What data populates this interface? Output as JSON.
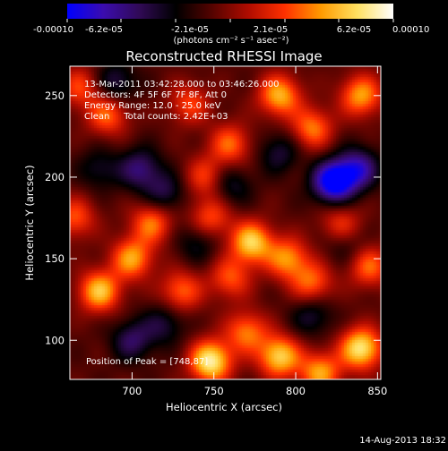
{
  "colorbar": {
    "tick_labels": [
      "-0.00010",
      "-6.2e-05",
      "-2.1e-05",
      "2.1e-05",
      "6.2e-05",
      "0.00010"
    ],
    "unit_label": "(photons cm⁻² s⁻¹ asec⁻²)",
    "min": -0.0001,
    "max": 0.0001,
    "palette": [
      "#0000ff",
      "#3b0cae",
      "#300a55",
      "#000000",
      "#550300",
      "#b00c00",
      "#ff3000",
      "#ff9a00",
      "#ffe060",
      "#ffffff"
    ]
  },
  "chart_data": {
    "type": "heatmap",
    "title": "Reconstructed RHESSI Image",
    "xlabel": "Heliocentric X (arcsec)",
    "ylabel": "Heliocentric Y (arcsec)",
    "xlim": [
      662,
      852
    ],
    "ylim": [
      76,
      268
    ],
    "x_ticks": [
      700,
      750,
      800,
      850
    ],
    "y_ticks": [
      100,
      150,
      200,
      250
    ],
    "info_lines": [
      "13-Mar-2011 03:42:28.000 to 03:46:26.000",
      "Detectors: 4F 5F 6F 7F 8F, Att 0",
      "Energy Range: 12.0 - 25.0 keV",
      "Clean     Total counts: 2.42E+03"
    ],
    "peak_label": "Position of Peak = [748,87]",
    "peak_position": [
      748,
      87
    ],
    "grid": false,
    "blobs": [
      {
        "x": 748,
        "y": 87,
        "v": 1.0
      },
      {
        "x": 790,
        "y": 90,
        "v": 0.85
      },
      {
        "x": 840,
        "y": 95,
        "v": 0.95
      },
      {
        "x": 815,
        "y": 80,
        "v": 0.7
      },
      {
        "x": 770,
        "y": 105,
        "v": 0.6
      },
      {
        "x": 680,
        "y": 130,
        "v": 0.8
      },
      {
        "x": 700,
        "y": 150,
        "v": 0.7
      },
      {
        "x": 712,
        "y": 172,
        "v": 0.6
      },
      {
        "x": 730,
        "y": 130,
        "v": 0.55
      },
      {
        "x": 773,
        "y": 160,
        "v": 0.85
      },
      {
        "x": 795,
        "y": 150,
        "v": 0.65
      },
      {
        "x": 810,
        "y": 135,
        "v": 0.55
      },
      {
        "x": 760,
        "y": 138,
        "v": 0.5
      },
      {
        "x": 748,
        "y": 175,
        "v": 0.5
      },
      {
        "x": 685,
        "y": 238,
        "v": 0.55
      },
      {
        "x": 735,
        "y": 245,
        "v": 0.45
      },
      {
        "x": 760,
        "y": 220,
        "v": 0.55
      },
      {
        "x": 745,
        "y": 200,
        "v": 0.45
      },
      {
        "x": 790,
        "y": 250,
        "v": 0.75
      },
      {
        "x": 810,
        "y": 230,
        "v": 0.6
      },
      {
        "x": 840,
        "y": 250,
        "v": 0.7
      },
      {
        "x": 828,
        "y": 170,
        "v": 0.5
      },
      {
        "x": 845,
        "y": 145,
        "v": 0.55
      },
      {
        "x": 665,
        "y": 175,
        "v": 0.5
      },
      {
        "x": 668,
        "y": 255,
        "v": 0.45
      },
      {
        "x": 823,
        "y": 197,
        "v": -1.0
      },
      {
        "x": 838,
        "y": 205,
        "v": -0.65
      },
      {
        "x": 705,
        "y": 205,
        "v": -0.5
      },
      {
        "x": 720,
        "y": 190,
        "v": -0.4
      },
      {
        "x": 690,
        "y": 258,
        "v": -0.4
      },
      {
        "x": 760,
        "y": 195,
        "v": -0.35
      },
      {
        "x": 700,
        "y": 100,
        "v": -0.45
      },
      {
        "x": 720,
        "y": 110,
        "v": -0.35
      },
      {
        "x": 810,
        "y": 115,
        "v": -0.35
      },
      {
        "x": 830,
        "y": 160,
        "v": -0.3
      },
      {
        "x": 790,
        "y": 215,
        "v": -0.35
      },
      {
        "x": 740,
        "y": 160,
        "v": -0.3
      },
      {
        "x": 680,
        "y": 205,
        "v": -0.3
      }
    ]
  },
  "footer": {
    "generated": "14-Aug-2013 18:32"
  }
}
